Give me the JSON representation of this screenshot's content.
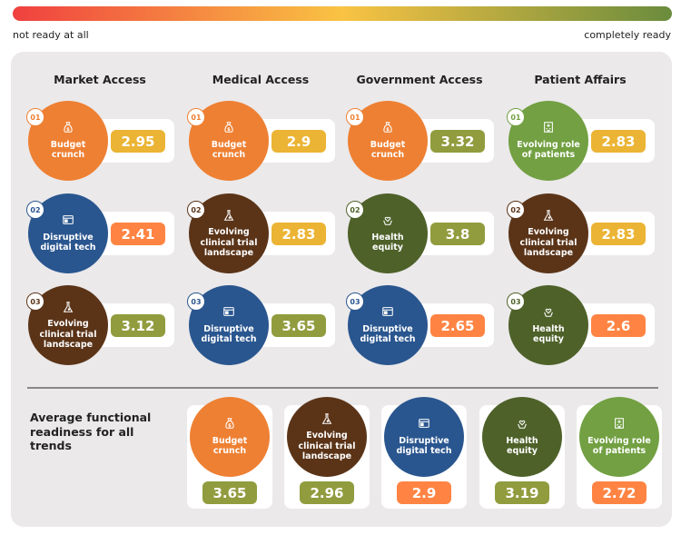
{
  "scale": {
    "left_label": "not ready at all",
    "right_label": "completely ready",
    "colors": [
      "#f0403f",
      "#f9c343",
      "#6a8c3d"
    ]
  },
  "themes": {
    "budget": {
      "label": "Budget crunch",
      "lines": [
        "Budget",
        "crunch"
      ],
      "icon": "money-bag-icon",
      "color": "#ee8033"
    },
    "digital": {
      "label": "Disruptive digital tech",
      "lines": [
        "Disruptive",
        "digital tech"
      ],
      "icon": "browser-window-icon",
      "color": "#2a568f"
    },
    "clinical": {
      "label": "Evolving clinical trial landscape",
      "lines": [
        "Evolving",
        "clinical trial",
        "landscape"
      ],
      "icon": "flask-icon",
      "color": "#5b3418"
    },
    "health": {
      "label": "Health equity",
      "lines": [
        "Health",
        "equity"
      ],
      "icon": "health-hands-icon",
      "color": "#4e6129"
    },
    "patients": {
      "label": "Evolving role of patients",
      "lines": [
        "Evolving role",
        "of patients"
      ],
      "icon": "hospital-icon",
      "color": "#72a042"
    }
  },
  "badge_colors": {
    "yellow": "#ebb434",
    "olive": "#919c3e",
    "orange": "#ff8443"
  },
  "columns": [
    {
      "title": "Market Access",
      "items": [
        {
          "rank": "01",
          "theme": "budget",
          "value": "2.95",
          "badge": "yellow"
        },
        {
          "rank": "02",
          "theme": "digital",
          "value": "2.41",
          "badge": "orange"
        },
        {
          "rank": "03",
          "theme": "clinical",
          "value": "3.12",
          "badge": "olive"
        }
      ]
    },
    {
      "title": "Medical Access",
      "items": [
        {
          "rank": "01",
          "theme": "budget",
          "value": "2.9",
          "badge": "yellow"
        },
        {
          "rank": "02",
          "theme": "clinical",
          "value": "2.83",
          "badge": "yellow"
        },
        {
          "rank": "03",
          "theme": "digital",
          "value": "3.65",
          "badge": "olive"
        }
      ]
    },
    {
      "title": "Government Access",
      "items": [
        {
          "rank": "01",
          "theme": "budget",
          "value": "3.32",
          "badge": "olive"
        },
        {
          "rank": "02",
          "theme": "health",
          "value": "3.8",
          "badge": "olive"
        },
        {
          "rank": "03",
          "theme": "digital",
          "value": "2.65",
          "badge": "orange"
        }
      ]
    },
    {
      "title": "Patient Affairs",
      "items": [
        {
          "rank": "01",
          "theme": "patients",
          "value": "2.83",
          "badge": "yellow"
        },
        {
          "rank": "02",
          "theme": "clinical",
          "value": "2.83",
          "badge": "yellow"
        },
        {
          "rank": "03",
          "theme": "health",
          "value": "2.6",
          "badge": "orange"
        }
      ]
    }
  ],
  "average": {
    "title": "Average functional readiness for all trends",
    "items": [
      {
        "theme": "budget",
        "value": "3.65",
        "badge": "olive"
      },
      {
        "theme": "clinical",
        "value": "2.96",
        "badge": "olive"
      },
      {
        "theme": "digital",
        "value": "2.9",
        "badge": "orange"
      },
      {
        "theme": "health",
        "value": "3.19",
        "badge": "olive"
      },
      {
        "theme": "patients",
        "value": "2.72",
        "badge": "orange"
      }
    ]
  }
}
